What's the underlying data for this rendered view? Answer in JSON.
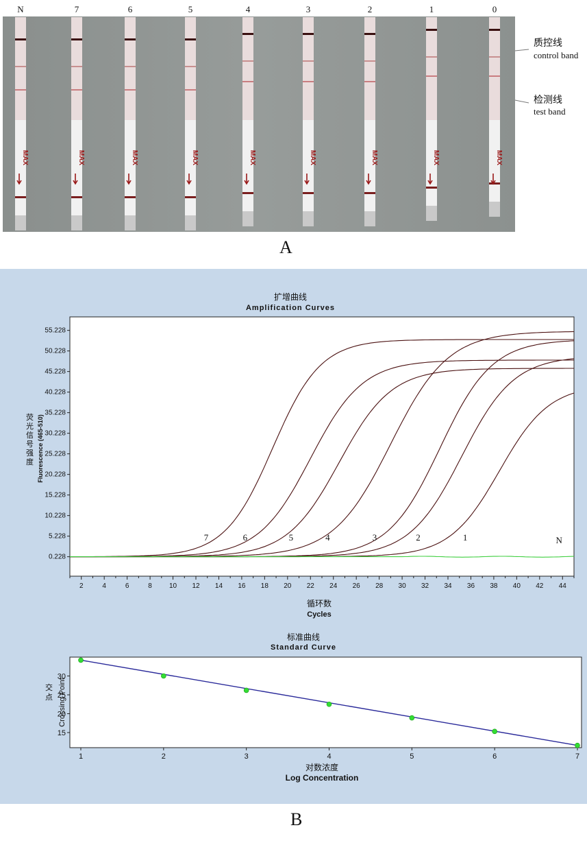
{
  "panel_a": {
    "label": "A",
    "strip_labels": [
      "N",
      "7",
      "6",
      "5",
      "4",
      "3",
      "2",
      "1",
      "0"
    ],
    "strip_text": "MAX",
    "annotations": {
      "control_zh": "质控线",
      "control_en": "control band",
      "test_zh": "检测线",
      "test_en": "test band"
    },
    "colors": {
      "background": "#8e9391",
      "strip": "#e9dcdc",
      "band": "#7a1f1f"
    }
  },
  "panel_b": {
    "label": "B",
    "background": "#c7d8ea"
  },
  "chart_data": [
    {
      "type": "line",
      "title_zh": "扩增曲线",
      "title": "Amplification Curves",
      "xlabel_zh": "循环数",
      "xlabel": "Cycles",
      "ylabel_zh": "荧光信号强度",
      "ylabel": "Fluorescence (465-510)",
      "xlim": [
        1,
        45
      ],
      "ylim": [
        -4.5,
        58.5
      ],
      "x_ticks": [
        2,
        4,
        6,
        8,
        10,
        12,
        14,
        16,
        18,
        20,
        22,
        24,
        26,
        28,
        30,
        32,
        34,
        36,
        38,
        40,
        42,
        44
      ],
      "y_ticks": [
        "0.228",
        "5.228",
        "10.228",
        "15.228",
        "20.228",
        "25.228",
        "30.228",
        "35.228",
        "40.228",
        "45.228",
        "50.228",
        "55.228"
      ],
      "y_tick_values": [
        0.228,
        5.228,
        10.228,
        15.228,
        20.228,
        25.228,
        30.228,
        35.228,
        40.228,
        45.228,
        50.228,
        55.228
      ],
      "series": [
        {
          "name": "7",
          "color": "#4a1010",
          "baseline": 0.228,
          "plateau": 53.0,
          "midpoint": 18.7,
          "slope": 0.48,
          "label_x": 12.9
        },
        {
          "name": "6",
          "color": "#4a1010",
          "baseline": 0.228,
          "plateau": 48.0,
          "midpoint": 22.0,
          "slope": 0.44,
          "label_x": 16.3
        },
        {
          "name": "5",
          "color": "#4a1010",
          "baseline": 0.228,
          "plateau": 46.0,
          "midpoint": 24.5,
          "slope": 0.44,
          "label_x": 20.3
        },
        {
          "name": "4",
          "color": "#4a1010",
          "baseline": 0.228,
          "plateau": 55.0,
          "midpoint": 29.0,
          "slope": 0.4,
          "label_x": 23.5
        },
        {
          "name": "3",
          "color": "#4a1010",
          "baseline": 0.228,
          "plateau": 53.0,
          "midpoint": 33.3,
          "slope": 0.44,
          "label_x": 27.6
        },
        {
          "name": "2",
          "color": "#4a1010",
          "baseline": 0.228,
          "plateau": 49.0,
          "midpoint": 35.2,
          "slope": 0.44,
          "label_x": 31.4
        },
        {
          "name": "1",
          "color": "#4a1010",
          "baseline": 0.228,
          "plateau": 42.0,
          "midpoint": 38.5,
          "slope": 0.46,
          "label_x": 35.5
        },
        {
          "name": "N",
          "color": "#3fcf3f",
          "baseline": 0.228,
          "plateau": 0,
          "midpoint": 0,
          "slope": 0,
          "label_x": 43.7
        }
      ]
    },
    {
      "type": "scatter",
      "title_zh": "标准曲线",
      "title": "Standard Curve",
      "xlabel_zh": "对数浓度",
      "xlabel": "Log Concentration",
      "ylabel_zh": "交点",
      "ylabel": "Crossing Point",
      "xlim": [
        1,
        7
      ],
      "ylim": [
        11,
        35
      ],
      "x_ticks": [
        1,
        2,
        3,
        4,
        5,
        6,
        7
      ],
      "y_ticks": [
        15,
        20,
        25,
        30
      ],
      "x": [
        1,
        2,
        3,
        4,
        5,
        6,
        7
      ],
      "y": [
        34.2,
        30.0,
        26.2,
        22.5,
        18.9,
        15.3,
        11.6
      ],
      "fit_line": {
        "x": [
          1,
          7
        ],
        "y": [
          34.2,
          11.6
        ],
        "color": "#2a2a9a"
      },
      "point_color": "#33dd33"
    }
  ]
}
